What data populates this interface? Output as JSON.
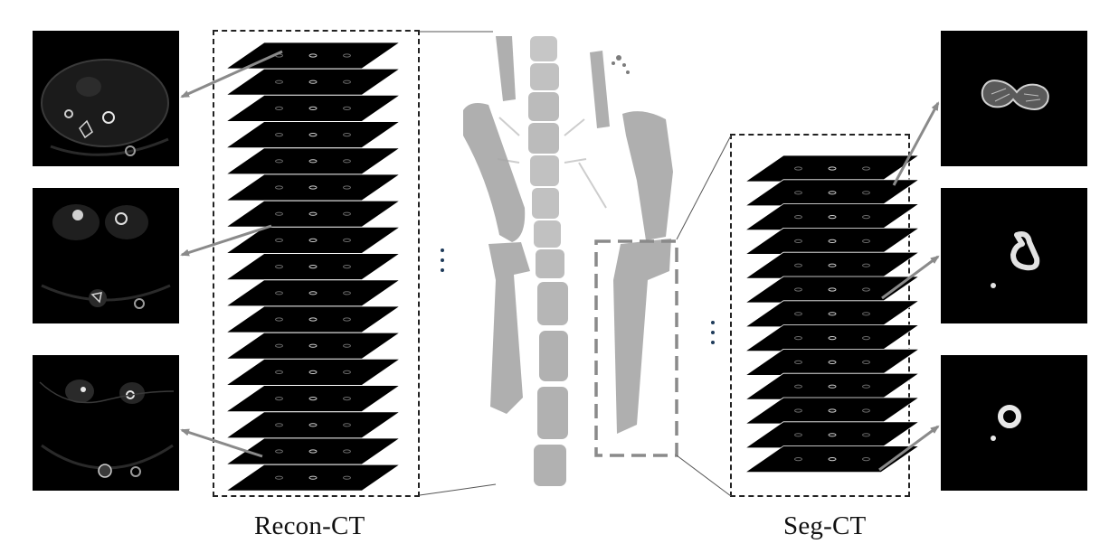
{
  "labels": {
    "recon": "Recon-CT",
    "seg": "Seg-CT"
  },
  "colors": {
    "arrow": "#8a8a8a",
    "slice": "#000000",
    "bone": "#9a9a9a",
    "dashed_box": "#222222",
    "ellipsis_dots": "#1f3b5a"
  },
  "stacks": {
    "recon_slice_count": 17,
    "seg_slice_count": 13
  }
}
